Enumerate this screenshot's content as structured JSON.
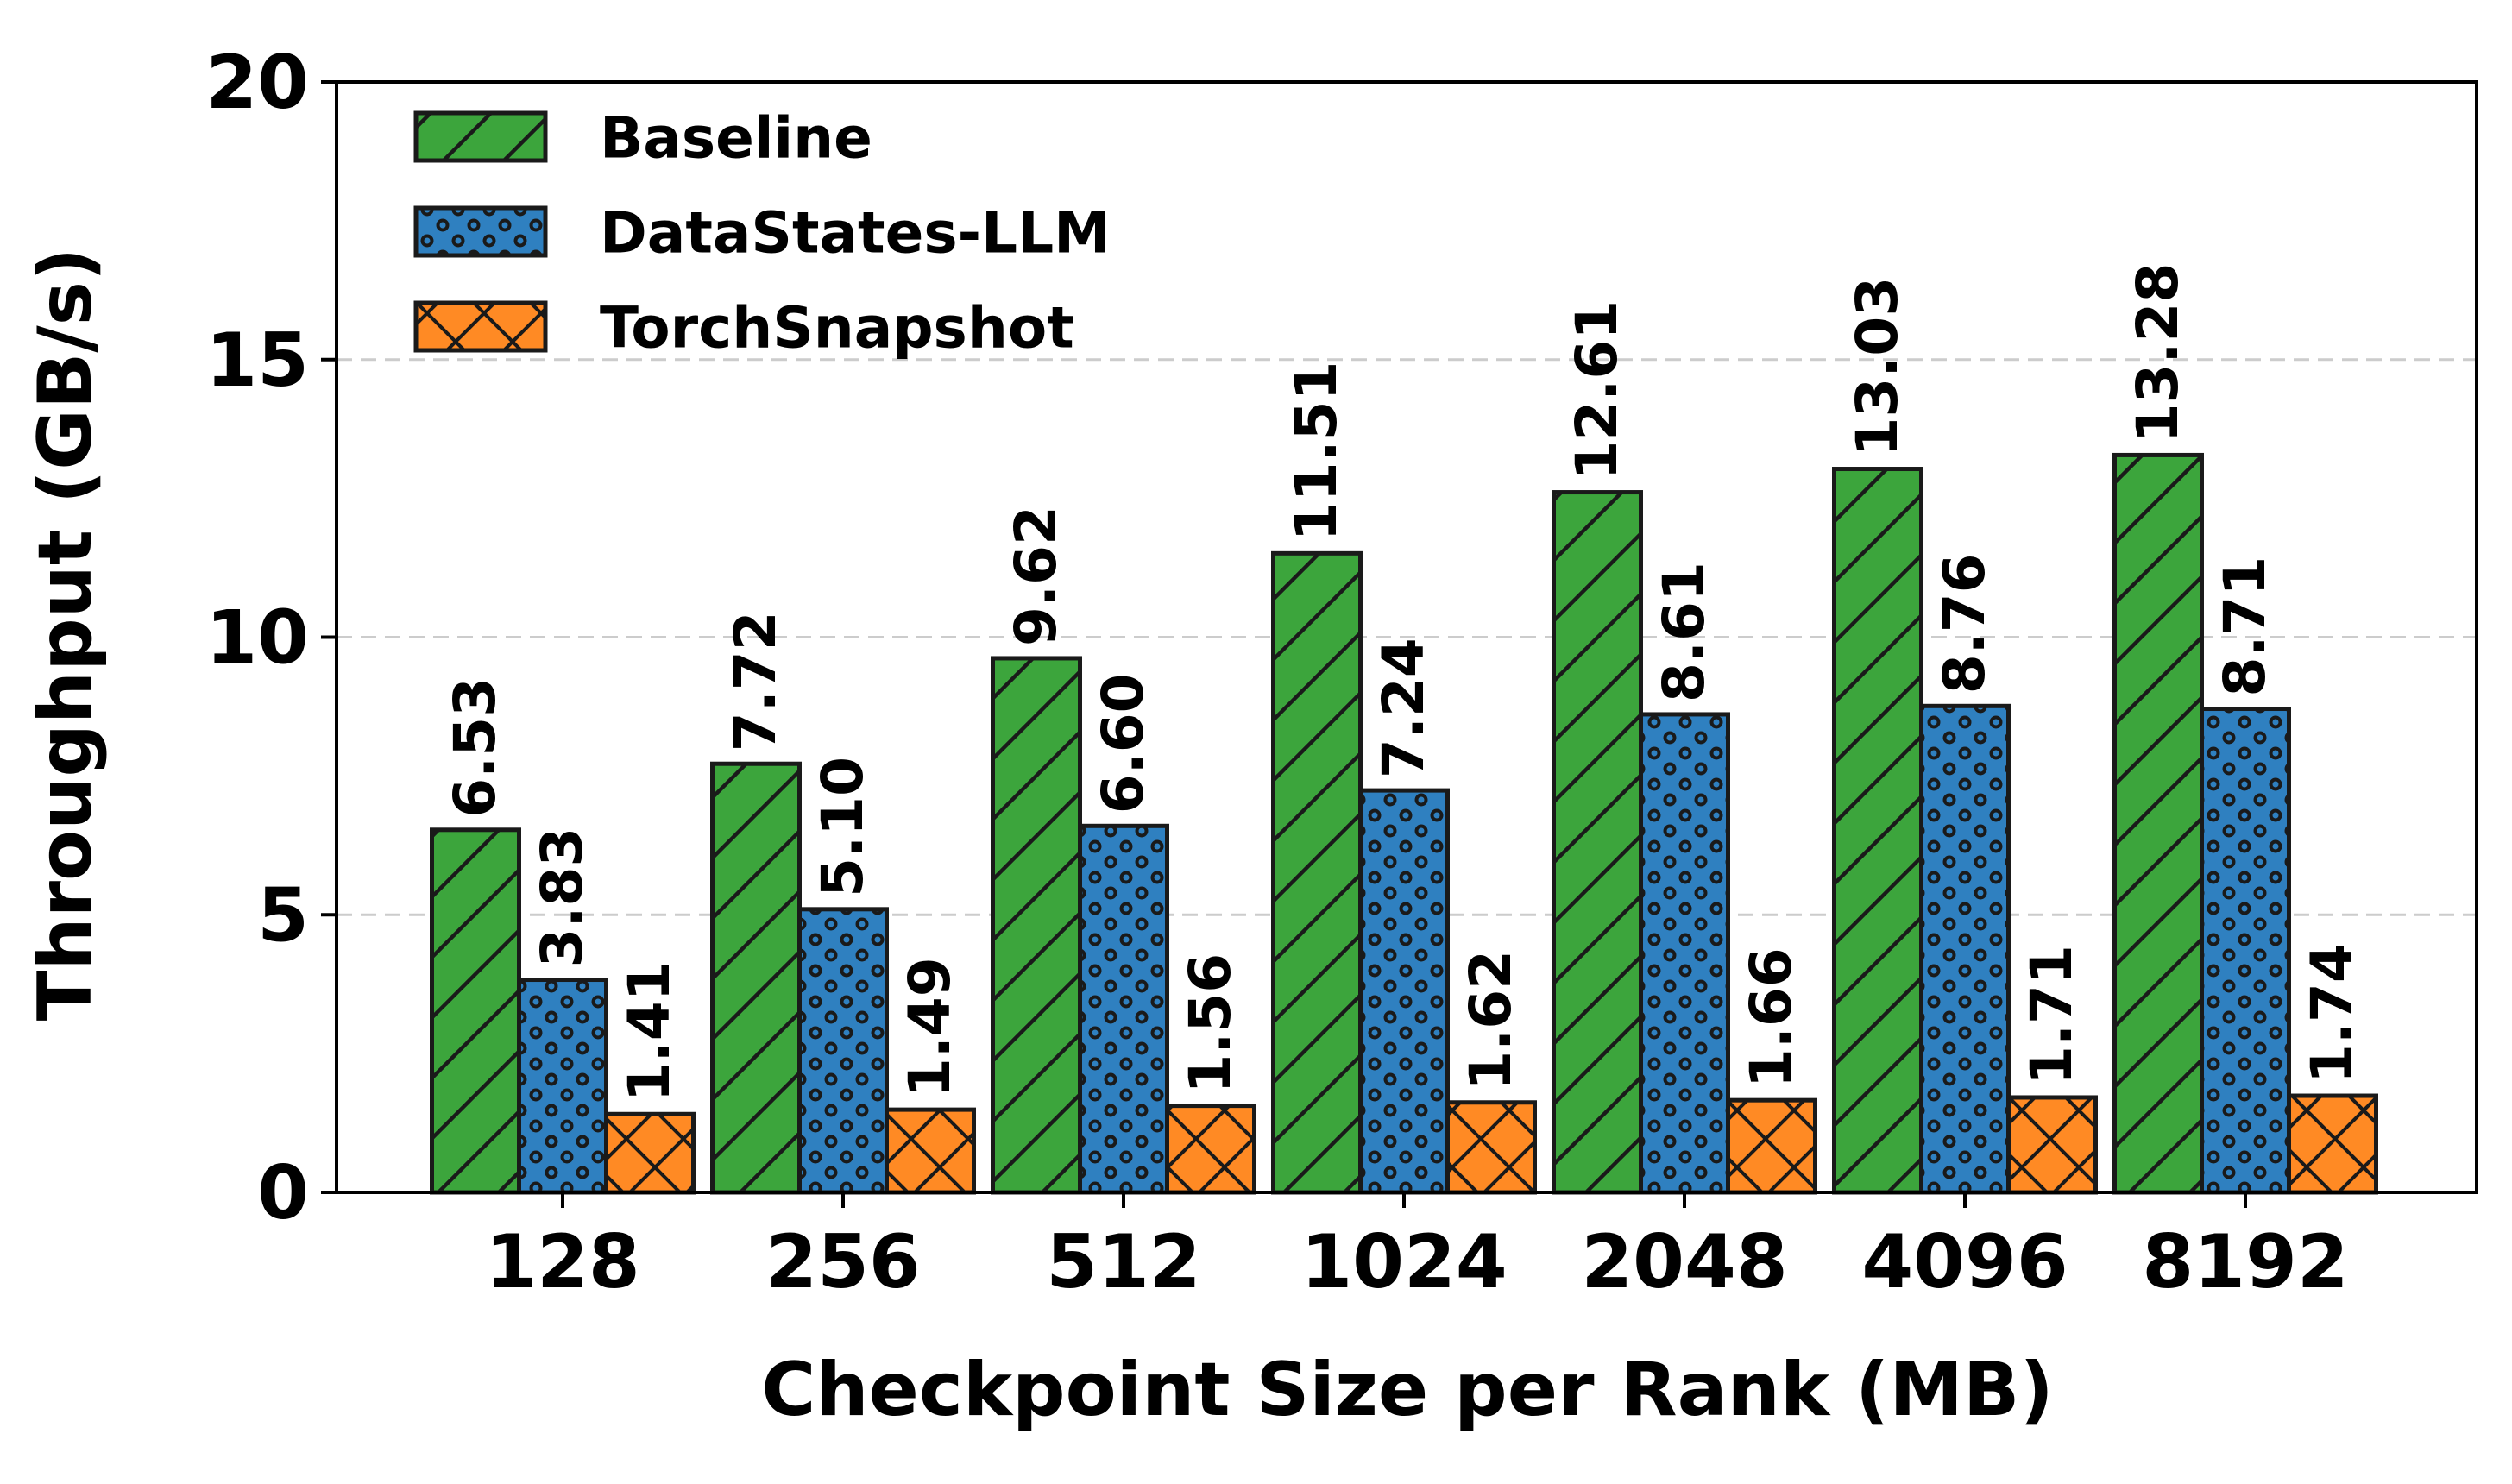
{
  "chart_data": {
    "type": "bar",
    "title": "",
    "xlabel": "Checkpoint Size per Rank (MB)",
    "ylabel": "Throughput (GB/s)",
    "ylim": [
      0,
      20
    ],
    "yticks": [
      "0",
      "5",
      "10",
      "15",
      "20"
    ],
    "grid": "y-dashed",
    "legend_position": "top-left",
    "categories": [
      "128",
      "256",
      "512",
      "1024",
      "2048",
      "4096",
      "8192"
    ],
    "series": [
      {
        "name": "Baseline",
        "color": "#3ca53c",
        "hatch": "diagonal",
        "values": [
          6.53,
          7.72,
          9.62,
          11.51,
          12.61,
          13.03,
          13.28
        ],
        "labels": [
          "6.53",
          "7.72",
          "9.62",
          "11.51",
          "12.61",
          "13.03",
          "13.28"
        ]
      },
      {
        "name": "DataStates-LLM",
        "color": "#2f80c0",
        "hatch": "dots",
        "values": [
          3.83,
          5.1,
          6.6,
          7.24,
          8.61,
          8.76,
          8.71
        ],
        "labels": [
          "3.83",
          "5.10",
          "6.60",
          "7.24",
          "8.61",
          "8.76",
          "8.71"
        ]
      },
      {
        "name": "TorchSnapshot",
        "color": "#ff8a24",
        "hatch": "crosshatch",
        "values": [
          1.41,
          1.49,
          1.56,
          1.62,
          1.66,
          1.71,
          1.74
        ],
        "labels": [
          "1.41",
          "1.49",
          "1.56",
          "1.62",
          "1.66",
          "1.71",
          "1.74"
        ]
      }
    ]
  }
}
